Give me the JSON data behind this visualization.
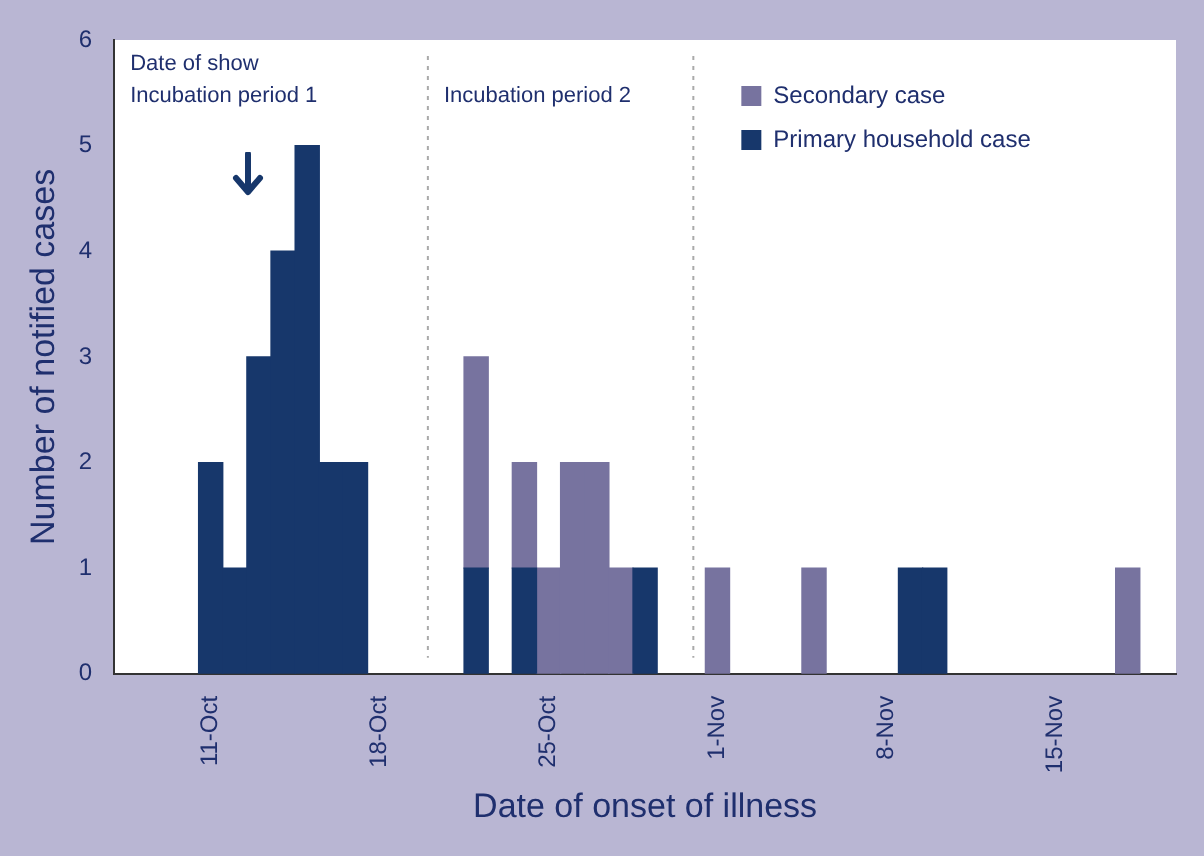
{
  "chart_data": {
    "type": "bar",
    "stacked": true,
    "xlabel": "Date of onset of illness",
    "ylabel": "Number of notified cases",
    "xlim": [
      "--10-07",
      "--11-20"
    ],
    "xticks": [
      {
        "value": "--10-11",
        "label": "11-Oct"
      },
      {
        "value": "--10-18",
        "label": "18-Oct"
      },
      {
        "value": "--10-25",
        "label": "25-Oct"
      },
      {
        "value": "--11-01",
        "label": "1-Nov"
      },
      {
        "value": "--11-08",
        "label": "8-Nov"
      },
      {
        "value": "--11-15",
        "label": "15-Nov"
      }
    ],
    "ylim": [
      0,
      6
    ],
    "yticks": [
      0,
      1,
      2,
      3,
      4,
      5,
      6
    ],
    "grid": false,
    "legend": "top right",
    "x": [
      "--10-11",
      "--10-12",
      "--10-13",
      "--10-14",
      "--10-15",
      "--10-16",
      "--10-17",
      "--10-22",
      "--10-24",
      "--10-25",
      "--10-26",
      "--10-27",
      "--10-28",
      "--10-29",
      "--11-01",
      "--11-05",
      "--11-09",
      "--11-10",
      "--11-18"
    ],
    "series": [
      {
        "name": "Primary household case",
        "color": "#17376b",
        "values": [
          2,
          1,
          3,
          4,
          5,
          2,
          2,
          1,
          1,
          null,
          null,
          null,
          null,
          1,
          null,
          null,
          1,
          1,
          null
        ]
      },
      {
        "name": "Secondary case",
        "color": "#77739f",
        "values": [
          null,
          null,
          null,
          null,
          null,
          null,
          null,
          2,
          1,
          1,
          2,
          2,
          1,
          null,
          1,
          1,
          null,
          null,
          1
        ]
      }
    ],
    "ref_lines": [
      {
        "axis": "x",
        "value": "--10-20",
        "line_style": "dotted",
        "color": "#aaaaaa"
      },
      {
        "axis": "x",
        "value": "--10-31",
        "line_style": "dotted",
        "color": "#aaaaaa"
      }
    ],
    "annotations": [
      "Date of show",
      "Incubation period 1",
      "Incubation period 2"
    ]
  }
}
